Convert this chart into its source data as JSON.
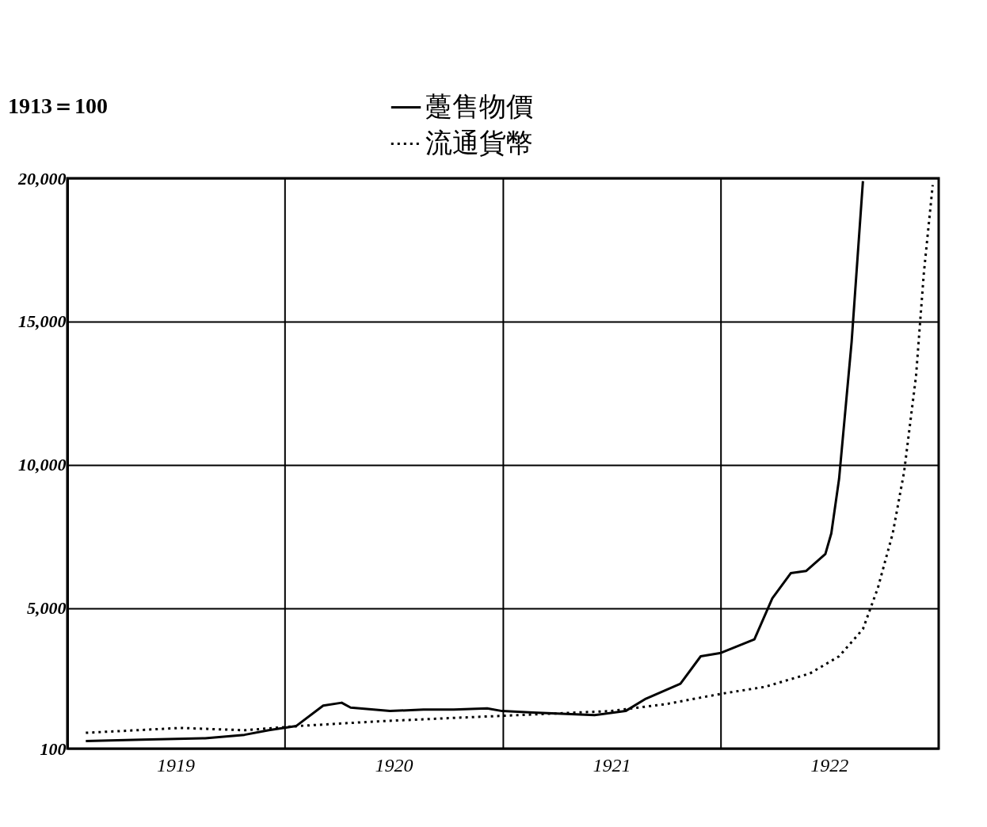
{
  "chart_data": {
    "type": "line",
    "annotations": [
      "1913＝100"
    ],
    "xlim": [
      "1919-01-01",
      "1923-01-01"
    ],
    "xticks": [
      {
        "value": "1919-07-02",
        "label": "1919"
      },
      {
        "value": "1920-01-01",
        "label": null
      },
      {
        "value": "1920-07-02",
        "label": "1920"
      },
      {
        "value": "1921-01-01",
        "label": null
      },
      {
        "value": "1921-07-02",
        "label": "1921"
      },
      {
        "value": "1922-01-01",
        "label": null
      },
      {
        "value": "1922-07-02",
        "label": "1922"
      }
    ],
    "ylim": [
      100,
      20000
    ],
    "yticks": [
      {
        "value": 100,
        "label": "100"
      },
      {
        "value": 5000,
        "label": "5,000"
      },
      {
        "value": 10000,
        "label": "10,000"
      },
      {
        "value": 15000,
        "label": "15,000"
      },
      {
        "value": 20000,
        "label": "20,000"
      }
    ],
    "grid": true,
    "legend": "top",
    "marker": "none",
    "series": [
      {
        "name": "躉售物價",
        "color": "#000000",
        "line_style": "solid",
        "x": [
          "1919-02-01",
          "1919-05-05",
          "1919-08-20",
          "1919-10-25",
          "1919-12-05",
          "1920-01-20",
          "1920-03-05",
          "1920-04-05",
          "1920-04-20",
          "1920-06-25",
          "1920-08-20",
          "1920-10-10",
          "1920-12-05",
          "1920-12-30",
          "1921-02-20",
          "1921-06-03",
          "1921-07-25",
          "1921-08-28",
          "1921-10-25",
          "1921-11-28",
          "1922-01-01",
          "1922-02-26",
          "1922-03-28",
          "1922-04-28",
          "1922-05-24",
          "1922-06-25",
          "1922-07-05",
          "1922-07-18",
          "1922-08-08",
          "1922-08-27"
        ],
        "values": [
          360,
          410,
          460,
          580,
          740,
          890,
          1600,
          1700,
          1530,
          1410,
          1460,
          1460,
          1500,
          1410,
          1360,
          1270,
          1410,
          1840,
          2360,
          3320,
          3440,
          3910,
          5340,
          6220,
          6300,
          6890,
          7610,
          9510,
          14280,
          19900
        ]
      },
      {
        "name": "流通貨幣",
        "color": "#000000",
        "line_style": "dotted",
        "x": [
          "1919-02-01",
          "1919-07-10",
          "1919-10-25",
          "1920-01-25",
          "1920-06-05",
          "1920-10-10",
          "1921-02-20",
          "1921-06-30",
          "1921-09-30",
          "1922-01-01",
          "1922-03-15",
          "1922-05-30",
          "1922-07-18",
          "1922-08-27",
          "1922-09-21",
          "1922-10-16",
          "1922-11-04",
          "1922-11-24",
          "1922-12-07",
          "1922-12-22"
        ],
        "values": [
          650,
          820,
          740,
          890,
          1050,
          1170,
          1290,
          1410,
          1650,
          2010,
          2250,
          2720,
          3320,
          4270,
          5700,
          7610,
          9750,
          13090,
          16660,
          19760
        ]
      }
    ]
  }
}
